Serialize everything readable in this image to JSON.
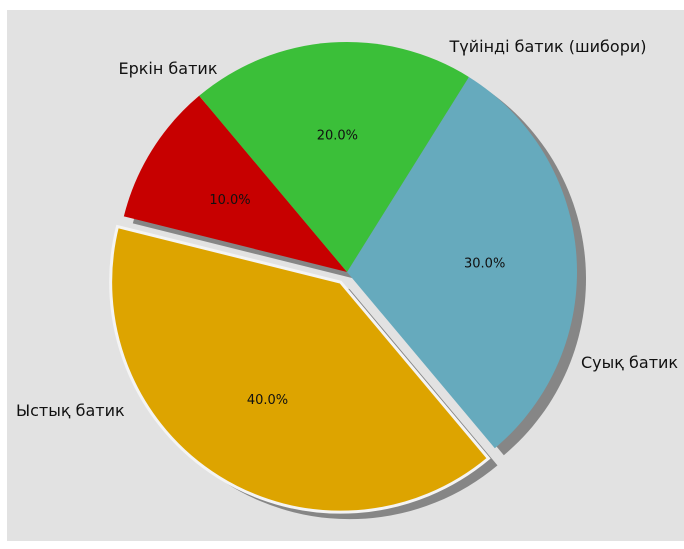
{
  "chart_data": {
    "type": "pie",
    "title": "",
    "shadow": true,
    "explode": "Ыстық батик",
    "start_angle_deg": 130,
    "slices": [
      {
        "label": "Еркін батик",
        "value": 10.0,
        "pct_text": "10.0%",
        "color": "#c70000"
      },
      {
        "label": "Ыстық батик",
        "value": 40.0,
        "pct_text": "40.0%",
        "color": "#dda400"
      },
      {
        "label": "Суық батик",
        "value": 30.0,
        "pct_text": "30.0%",
        "color": "#66aabd"
      },
      {
        "label": "Түйінді батик (шибори)",
        "value": 20.0,
        "pct_text": "20.0%",
        "color": "#3bbf39"
      }
    ]
  }
}
